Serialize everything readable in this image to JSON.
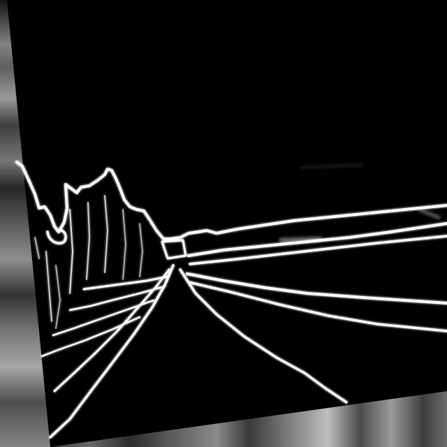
{
  "image": {
    "kind": "edge-detection rendering of a road scene at night",
    "palette": {
      "background": "#000000",
      "edge": "#ffffff",
      "smear_light": "#c8c8c8",
      "smear_dark": "#2a2a2a"
    }
  }
}
